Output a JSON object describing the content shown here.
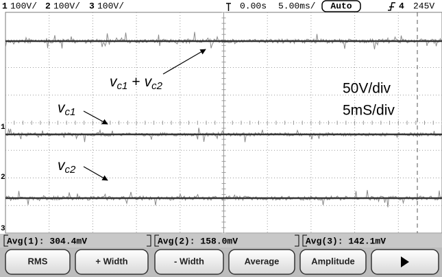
{
  "status": {
    "ch1": "1",
    "ch1_scale": "100V/",
    "ch2": "2",
    "ch2_scale": "100V/",
    "ch3": "3",
    "ch3_scale": "100V/",
    "delay": "0.00s",
    "timebase": "5.00ms/",
    "mode": "Auto",
    "trigger_source": "4",
    "trigger_level": "245V"
  },
  "annotations": {
    "sum": {
      "v1": "v",
      "s1": "c1",
      "plus": "+",
      "v2": "v",
      "s2": "c2"
    },
    "vc1": {
      "v": "v",
      "s": "c1"
    },
    "vc2": {
      "v": "v",
      "s": "c2"
    },
    "volts_div": "50V/div",
    "time_div": "5mS/div"
  },
  "channel_markers": [
    "1",
    "2",
    "3"
  ],
  "measurements": [
    "Avg(1): 304.4mV",
    "Avg(2): 158.0mV",
    "Avg(3): 142.1mV"
  ],
  "softkeys": [
    "RMS",
    "+ Width",
    "- Width",
    "Average",
    "Amplitude"
  ]
}
